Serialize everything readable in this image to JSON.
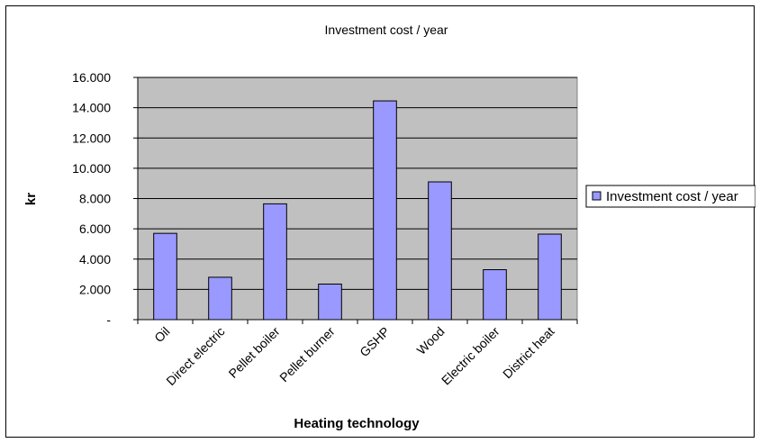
{
  "chart_data": {
    "type": "bar",
    "title": "Investment cost / year",
    "xlabel": "Heating technology",
    "ylabel": "kr",
    "categories": [
      "Oil",
      "Direct electric",
      "Pellet boiler",
      "Pellet burner",
      "GSHP",
      "Wood",
      "Electric boiler",
      "District heat"
    ],
    "series": [
      {
        "name": "Investment cost / year",
        "values": [
          5700,
          2800,
          7650,
          2350,
          14450,
          9100,
          3300,
          5650
        ]
      }
    ],
    "ylim": [
      0,
      16000
    ],
    "yticks": [
      0,
      2000,
      4000,
      6000,
      8000,
      10000,
      12000,
      14000,
      16000
    ],
    "ytick_labels": [
      "-",
      "2.000",
      "4.000",
      "6.000",
      "8.000",
      "10.000",
      "12.000",
      "14.000",
      "16.000"
    ],
    "grid": true,
    "legend_position": "right",
    "colors": {
      "bar_fill": "#9999ff",
      "plot_background": "#c0c0c0",
      "gridline": "#000000"
    }
  }
}
